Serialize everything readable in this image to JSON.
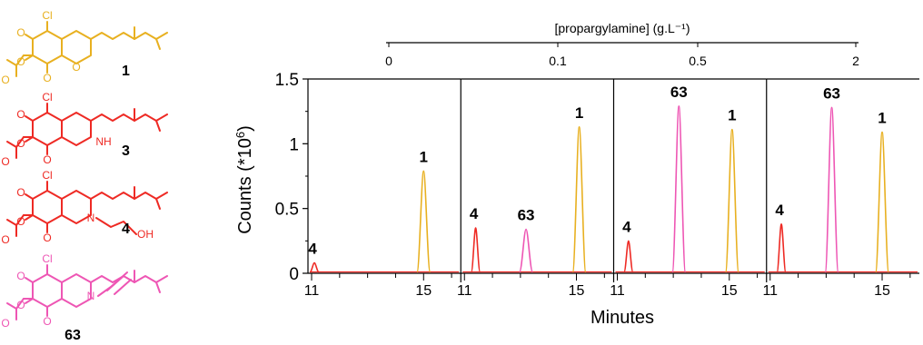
{
  "colors": {
    "compound_1": "#E8B020",
    "compound_3": "#EE2A24",
    "compound_4": "#EE2A24",
    "compound_63": "#EE56B4",
    "axis": "#000000"
  },
  "structures": [
    {
      "label": "1",
      "color": "#E8B020",
      "atoms": [
        "Cl",
        "O",
        "O",
        "O",
        "O",
        "O"
      ]
    },
    {
      "label": "3",
      "color": "#EE2A24",
      "atoms": [
        "Cl",
        "O",
        "O",
        "O",
        "O",
        "NH"
      ]
    },
    {
      "label": "4",
      "color": "#EE2A24",
      "atoms": [
        "Cl",
        "O",
        "O",
        "O",
        "O",
        "N",
        "OH"
      ]
    },
    {
      "label": "63",
      "color": "#EE56B4",
      "atoms": [
        "Cl",
        "O",
        "O",
        "O",
        "O",
        "N"
      ]
    }
  ],
  "chart_data": {
    "type": "line",
    "title": "",
    "top_axis_label": "[propargylamine] (g.L⁻¹)",
    "top_axis_ticks": [
      "0",
      "0.1",
      "0.5",
      "2"
    ],
    "xlabel": "Minutes",
    "ylabel_main": "Counts (*10",
    "ylabel_sup": "6",
    "ylabel_tail": ")",
    "ylim": [
      0,
      1.5
    ],
    "yticks": [
      0,
      0.5,
      1,
      1.5
    ],
    "ytick_labels": [
      "0",
      "0.5",
      "1",
      "1.5"
    ],
    "panels": [
      {
        "concentration": "0",
        "xlim": [
          11,
          16.2
        ],
        "xtick_labels": [
          "11",
          "15"
        ],
        "xticks": [
          11,
          15
        ],
        "peaks": [
          {
            "compound": "4",
            "x": 11.1,
            "y": 0.08,
            "label": "4"
          },
          {
            "compound": "1",
            "x": 15.0,
            "y": 0.79,
            "label": "1"
          }
        ]
      },
      {
        "concentration": "0.1",
        "xlim": [
          11,
          16.2
        ],
        "xtick_labels": [
          "11",
          "15"
        ],
        "xticks": [
          11,
          15
        ],
        "peaks": [
          {
            "compound": "4",
            "x": 11.4,
            "y": 0.35,
            "label": "4"
          },
          {
            "compound": "63",
            "x": 13.2,
            "y": 0.34,
            "label": "63"
          },
          {
            "compound": "1",
            "x": 15.1,
            "y": 1.13,
            "label": "1"
          }
        ]
      },
      {
        "concentration": "0.5",
        "xlim": [
          11,
          16.2
        ],
        "xtick_labels": [
          "11",
          "15"
        ],
        "xticks": [
          11,
          15
        ],
        "peaks": [
          {
            "compound": "4",
            "x": 11.4,
            "y": 0.25,
            "label": "4"
          },
          {
            "compound": "63",
            "x": 13.2,
            "y": 1.29,
            "label": "63"
          },
          {
            "compound": "1",
            "x": 15.1,
            "y": 1.11,
            "label": "1"
          }
        ]
      },
      {
        "concentration": "2",
        "xlim": [
          11,
          16.2
        ],
        "xtick_labels": [
          "11",
          "15"
        ],
        "xticks": [
          11,
          15
        ],
        "peaks": [
          {
            "compound": "4",
            "x": 11.4,
            "y": 0.38,
            "label": "4"
          },
          {
            "compound": "63",
            "x": 13.2,
            "y": 1.28,
            "label": "63"
          },
          {
            "compound": "1",
            "x": 15.0,
            "y": 1.09,
            "label": "1"
          }
        ]
      }
    ]
  }
}
